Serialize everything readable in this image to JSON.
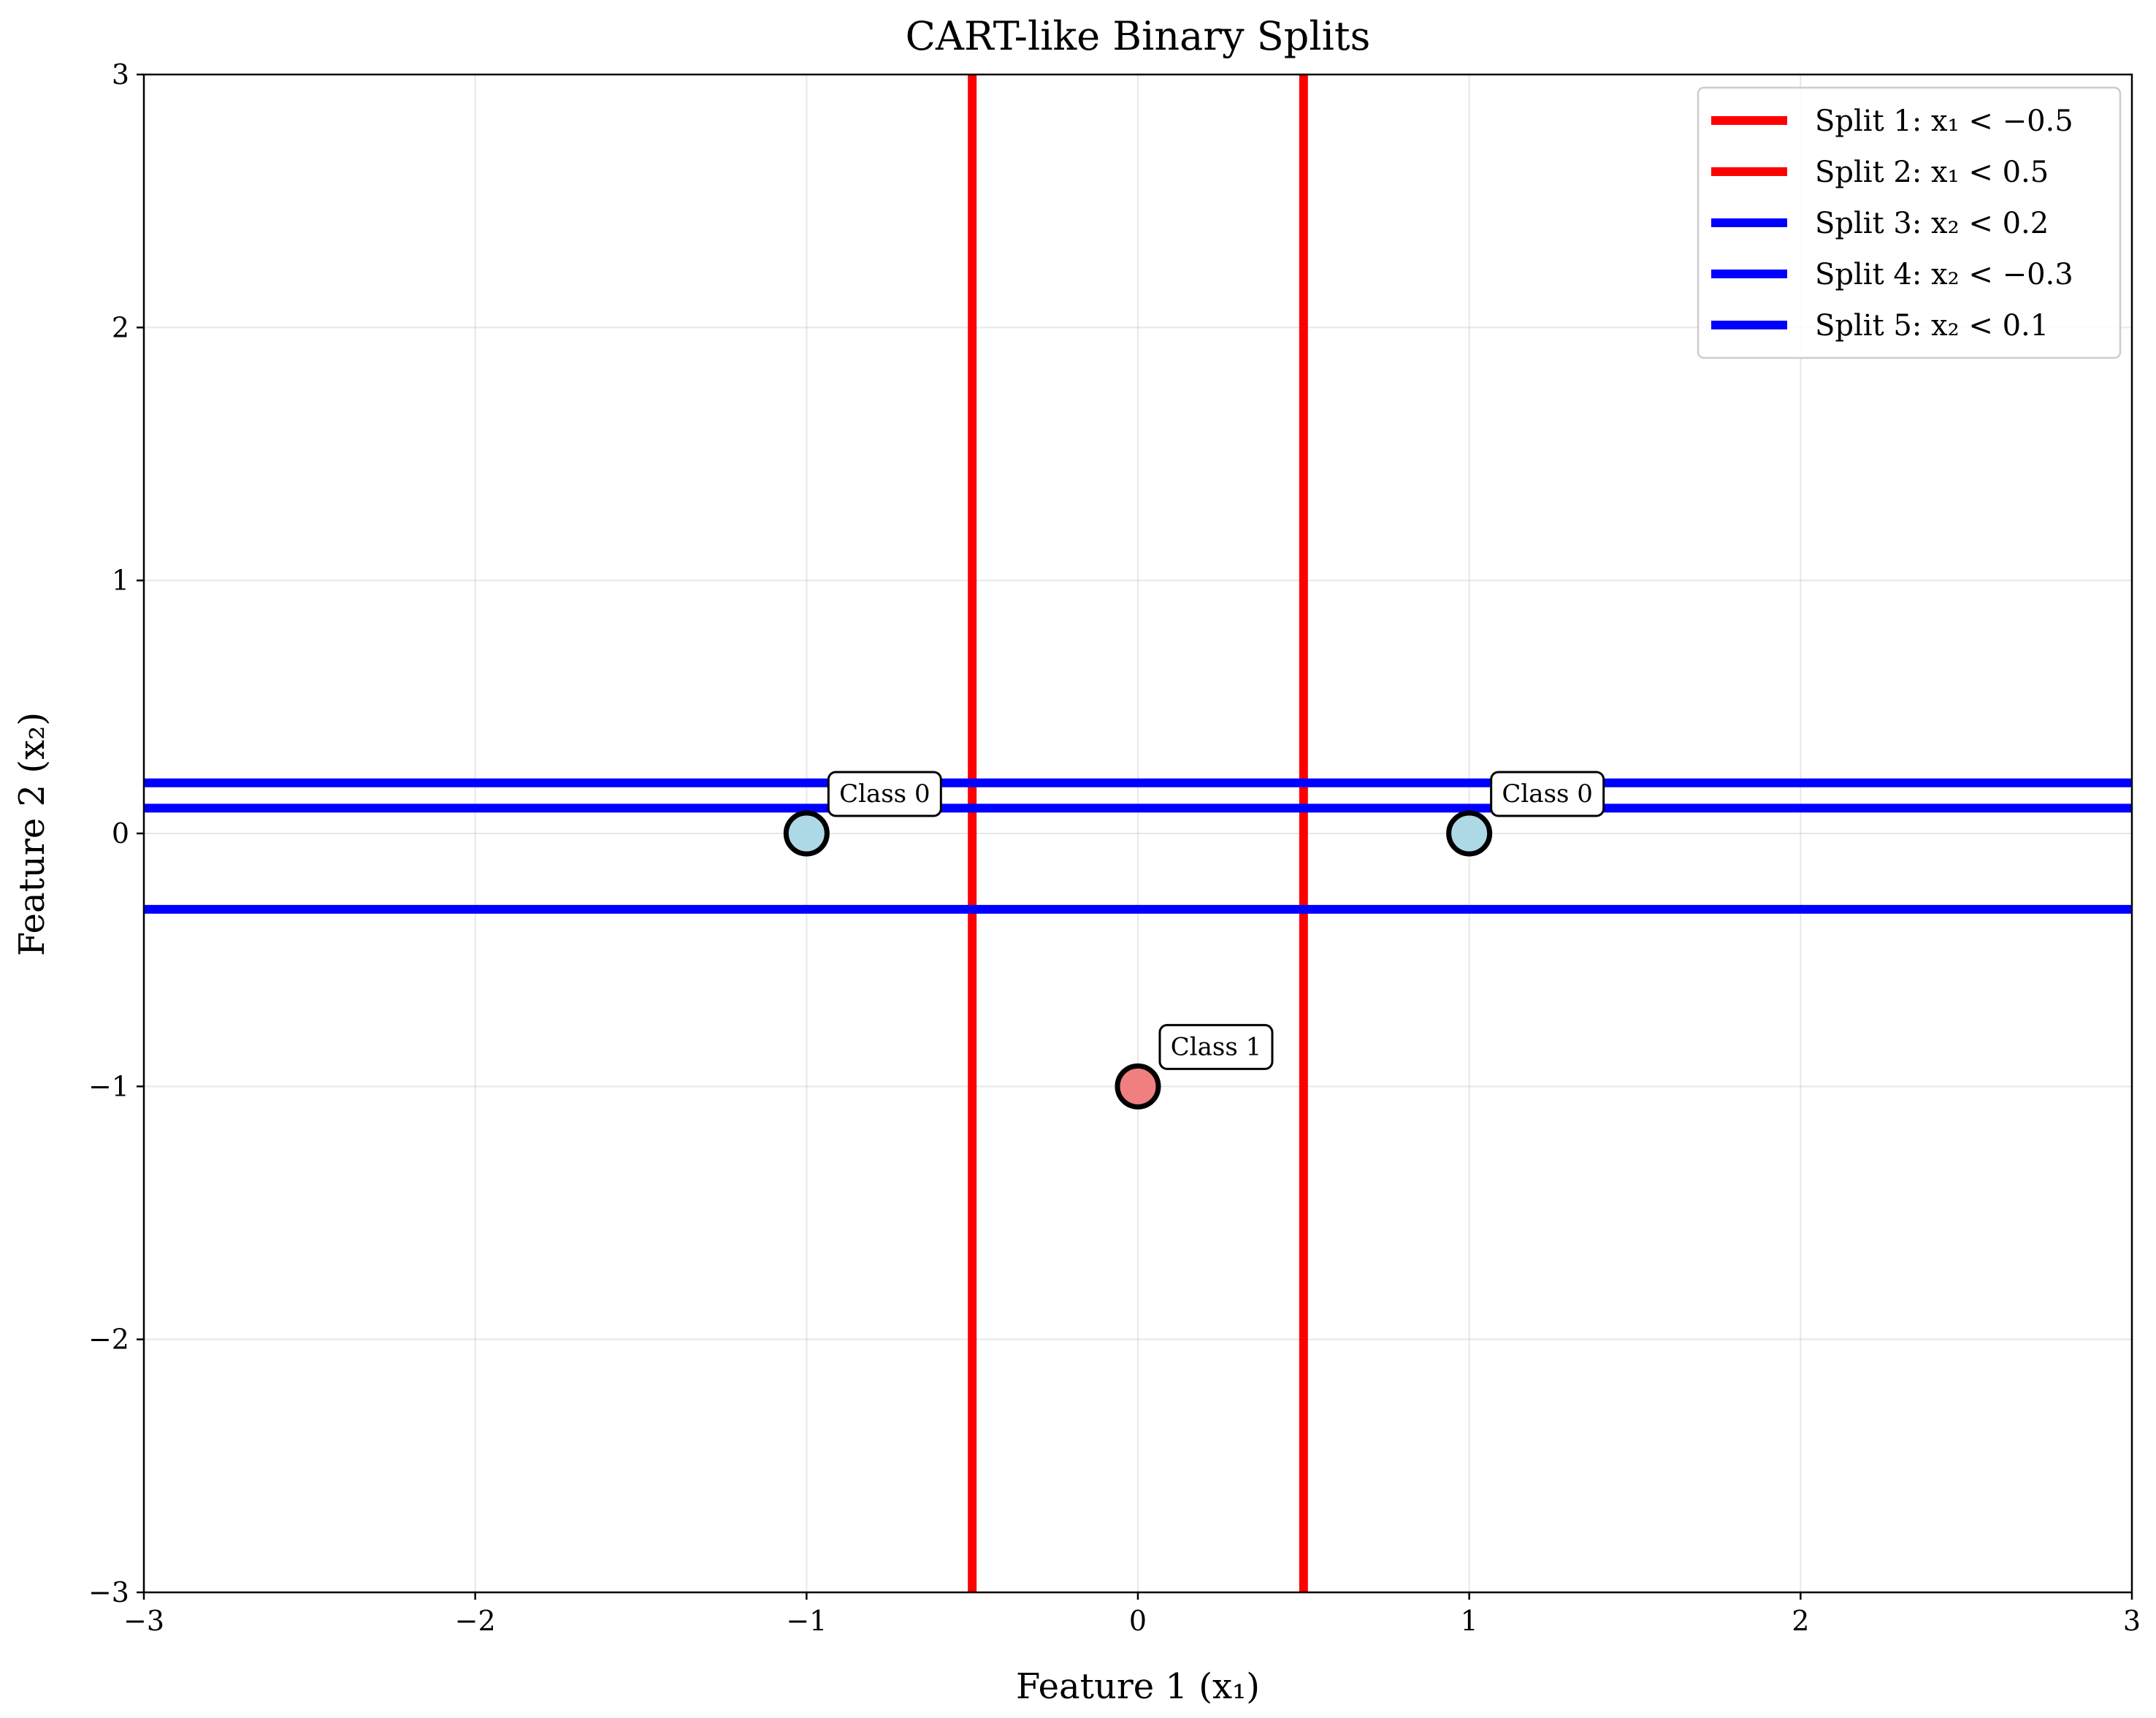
{
  "chart_data": {
    "type": "scatter",
    "title": "CART-like Binary Splits",
    "xlabel": "Feature 1 (x₁)",
    "ylabel": "Feature 2 (x₂)",
    "xlim": [
      -3,
      3
    ],
    "ylim": [
      -3,
      3
    ],
    "xticks": [
      -3,
      -2,
      -1,
      0,
      1,
      2,
      3
    ],
    "yticks": [
      -3,
      -2,
      -1,
      0,
      1,
      2,
      3
    ],
    "xtick_labels": [
      "−3",
      "−2",
      "−1",
      "0",
      "1",
      "2",
      "3"
    ],
    "ytick_labels": [
      "−3",
      "−2",
      "−1",
      "0",
      "1",
      "2",
      "3"
    ],
    "grid": true,
    "legend_position": "top-right",
    "points": [
      {
        "x": -1,
        "y": 0,
        "label": "Class 0",
        "color": "#add8e6"
      },
      {
        "x": 1,
        "y": 0,
        "label": "Class 0",
        "color": "#add8e6"
      },
      {
        "x": 0,
        "y": -1,
        "label": "Class 1",
        "color": "#f08080"
      }
    ],
    "splits": [
      {
        "orientation": "vertical",
        "value": -0.5,
        "color": "#ff0000",
        "label": "Split 1: x₁ < −0.5"
      },
      {
        "orientation": "vertical",
        "value": 0.5,
        "color": "#ff0000",
        "label": "Split 2: x₁ < 0.5"
      },
      {
        "orientation": "horizontal",
        "value": 0.2,
        "color": "#0000ff",
        "label": "Split 3: x₂ < 0.2"
      },
      {
        "orientation": "horizontal",
        "value": -0.3,
        "color": "#0000ff",
        "label": "Split 4: x₂ < −0.3"
      },
      {
        "orientation": "horizontal",
        "value": 0.1,
        "color": "#0000ff",
        "label": "Split 5: x₂ < 0.1"
      }
    ]
  }
}
